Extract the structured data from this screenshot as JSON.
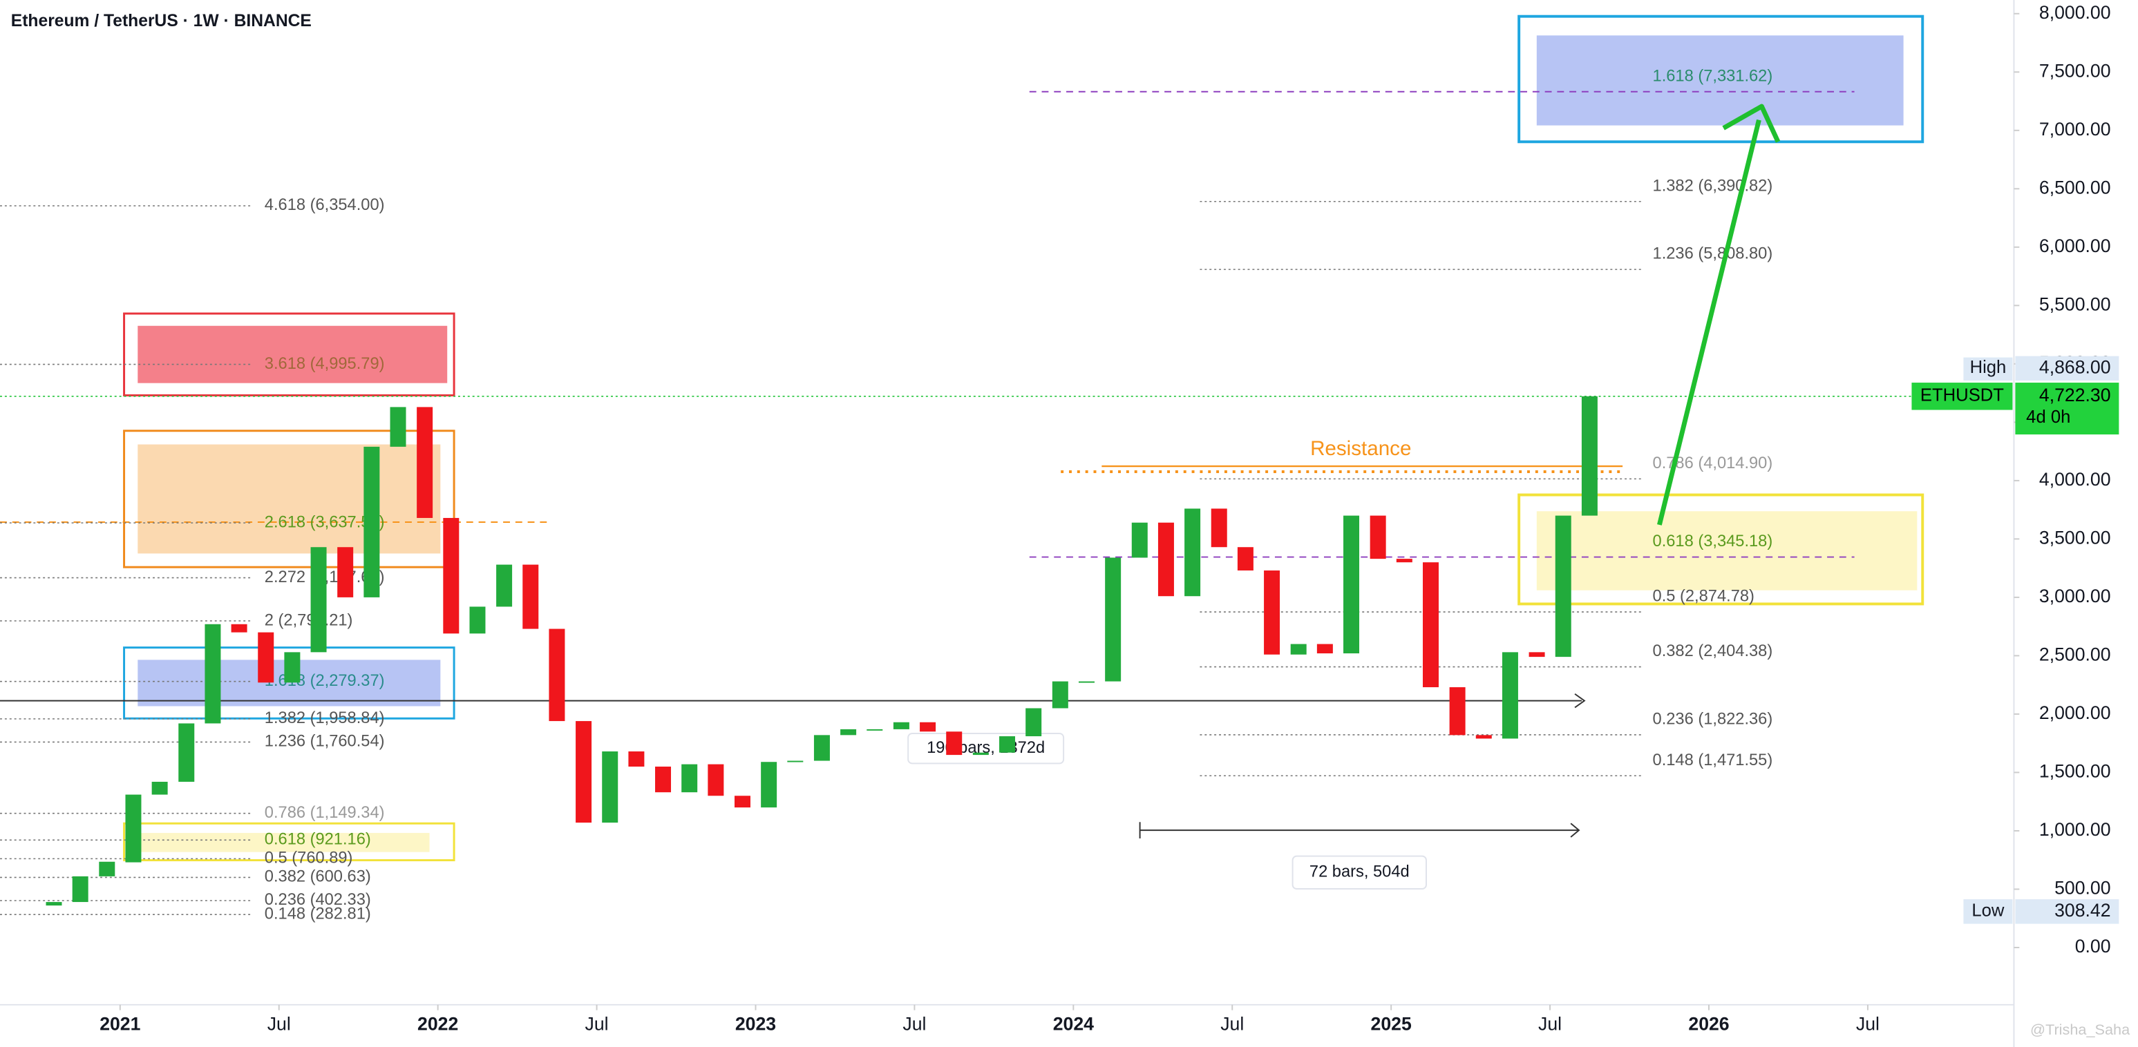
{
  "chart_data": {
    "type": "candlestick",
    "title": "Ethereum / TetherUS · 1W · BINANCE",
    "up_color": "#22ab3c",
    "down_color": "#f0161c",
    "x": [
      2020.75,
      2020.833,
      2020.917,
      2021,
      2021.083,
      2021.167,
      2021.25,
      2021.333,
      2021.417,
      2021.5,
      2021.583,
      2021.667,
      2021.75,
      2021.833,
      2021.917,
      2022,
      2022.083,
      2022.167,
      2022.25,
      2022.333,
      2022.417,
      2022.5,
      2022.583,
      2022.667,
      2022.75,
      2022.833,
      2022.917,
      2023,
      2023.083,
      2023.167,
      2023.25,
      2023.333,
      2023.417,
      2023.5,
      2023.583,
      2023.667,
      2023.75,
      2023.833,
      2023.917,
      2024,
      2024.083,
      2024.167,
      2024.25,
      2024.333,
      2024.417,
      2024.5,
      2024.583,
      2024.667,
      2024.75,
      2024.833,
      2024.917,
      2025,
      2025.083,
      2025.167,
      2025.25,
      2025.333,
      2025.417,
      2025.5,
      2025.583
    ],
    "open": [
      360,
      390,
      610,
      730,
      1310,
      1420,
      1920,
      2770,
      2700,
      2270,
      2530,
      3430,
      3000,
      4290,
      4630,
      3680,
      2690,
      2920,
      3280,
      2730,
      1940,
      1070,
      1680,
      1550,
      1330,
      1570,
      1300,
      1200,
      1590,
      1600,
      1820,
      1870,
      1870,
      1930,
      1850,
      1650,
      1670,
      1810,
      2050,
      2280,
      2280,
      3340,
      3640,
      3010,
      3760,
      3430,
      3230,
      2510,
      2600,
      2520,
      3700,
      3330,
      3300,
      2230,
      1820,
      1790,
      2530,
      2490,
      3700
    ],
    "high": {
      "value": 4868,
      "label": "4,868.00"
    },
    "low": {
      "value": 308.42,
      "label": "308.42"
    },
    "close": [
      390,
      610,
      735,
      1310,
      1420,
      1920,
      2770,
      2700,
      2270,
      2530,
      3430,
      3000,
      4290,
      4630,
      3680,
      2690,
      2920,
      3280,
      2730,
      1940,
      1070,
      1680,
      1550,
      1330,
      1570,
      1300,
      1200,
      1590,
      1600,
      1820,
      1870,
      1870,
      1930,
      1850,
      1650,
      1670,
      1810,
      2050,
      2280,
      2280,
      3340,
      3640,
      3010,
      3760,
      3430,
      3230,
      2510,
      2600,
      2520,
      3700,
      3330,
      3300,
      2230,
      1820,
      1790,
      2530,
      2490,
      3700,
      4722.3
    ],
    "xlim": [
      2020.622,
      2026.96
    ],
    "xticks": [
      {
        "value": 2021,
        "label": "2021"
      },
      {
        "value": 2021.5,
        "label": "Jul"
      },
      {
        "value": 2022,
        "label": "2022"
      },
      {
        "value": 2022.5,
        "label": "Jul"
      },
      {
        "value": 2023,
        "label": "2023"
      },
      {
        "value": 2023.5,
        "label": "Jul"
      },
      {
        "value": 2024,
        "label": "2024"
      },
      {
        "value": 2024.5,
        "label": "Jul"
      },
      {
        "value": 2025,
        "label": "2025"
      },
      {
        "value": 2025.5,
        "label": "Jul"
      },
      {
        "value": 2026,
        "label": "2026"
      },
      {
        "value": 2026.5,
        "label": "Jul"
      }
    ],
    "ylim": [
      -490,
      8117
    ],
    "yticks": [
      {
        "value": 0,
        "label": "0.00"
      },
      {
        "value": 500,
        "label": "500.00"
      },
      {
        "value": 1000,
        "label": "1,000.00"
      },
      {
        "value": 1500,
        "label": "1,500.00"
      },
      {
        "value": 2000,
        "label": "2,000.00"
      },
      {
        "value": 2500,
        "label": "2,500.00"
      },
      {
        "value": 3000,
        "label": "3,000.00"
      },
      {
        "value": 3500,
        "label": "3,500.00"
      },
      {
        "value": 4000,
        "label": "4,000.00"
      },
      {
        "value": 4500,
        "label": "4,500.00"
      },
      {
        "value": 5000,
        "label": "5,000.00"
      },
      {
        "value": 5500,
        "label": "5,500.00"
      },
      {
        "value": 6000,
        "label": "6,000.00"
      },
      {
        "value": 6500,
        "label": "6,500.00"
      },
      {
        "value": 7000,
        "label": "7,000.00"
      },
      {
        "value": 7500,
        "label": "7,500.00"
      },
      {
        "value": 8000,
        "label": "8,000.00"
      }
    ],
    "fib_left": [
      {
        "label": "4.618 (6,354.00)",
        "value": 6354.0,
        "color": "#555555"
      },
      {
        "label": "3.618 (4,995.79)",
        "value": 4995.79,
        "color": "#a0683a"
      },
      {
        "label": "2.618 (3,637.58)",
        "value": 3637.58,
        "color": "#5a9a1e"
      },
      {
        "label": "2.272 (3,167.64)",
        "value": 3167.64,
        "color": "#555555"
      },
      {
        "label": "2 (2,798.21)",
        "value": 2798.21,
        "color": "#555555"
      },
      {
        "label": "1.618 (2,279.37)",
        "value": 2279.37,
        "color": "#2a8c8c"
      },
      {
        "label": "1.382 (1,958.84)",
        "value": 1958.84,
        "color": "#555555"
      },
      {
        "label": "1.236 (1,760.54)",
        "value": 1760.54,
        "color": "#555555"
      },
      {
        "label": "0.786 (1,149.34)",
        "value": 1149.34,
        "color": "#999999"
      },
      {
        "label": "0.618 (921.16)",
        "value": 921.16,
        "color": "#5a9a1e"
      },
      {
        "label": "0.5 (760.89)",
        "value": 760.89,
        "color": "#555555"
      },
      {
        "label": "0.382 (600.63)",
        "value": 600.63,
        "color": "#555555"
      },
      {
        "label": "0.236 (402.33)",
        "value": 402.33,
        "color": "#555555"
      },
      {
        "label": "0.148 (282.81)",
        "value": 282.81,
        "color": "#555555"
      }
    ],
    "fib_right": [
      {
        "label": "1.618 (7,331.62)",
        "value": 7331.62,
        "color": "#2a8c6c",
        "highlight": true
      },
      {
        "label": "1.382 (6,390.82)",
        "value": 6390.82,
        "color": "#555555",
        "highlight": false
      },
      {
        "label": "1.236 (5,808.80)",
        "value": 5808.8,
        "color": "#555555",
        "highlight": false
      },
      {
        "label": "0.786 (4,014.90)",
        "value": 4014.9,
        "color": "#999999",
        "highlight": false
      },
      {
        "label": "0.618 (3,345.18)",
        "value": 3345.18,
        "color": "#5a9a1e",
        "highlight": true
      },
      {
        "label": "0.5 (2,874.78)",
        "value": 2874.78,
        "color": "#555555",
        "highlight": false
      },
      {
        "label": "0.382 (2,404.38)",
        "value": 2404.38,
        "color": "#555555",
        "highlight": false
      },
      {
        "label": "0.236 (1,822.36)",
        "value": 1822.36,
        "color": "#555555",
        "highlight": false
      },
      {
        "label": "0.148 (1,471.55)",
        "value": 1471.55,
        "color": "#555555",
        "highlight": false
      }
    ],
    "resistance": "Resistance",
    "range_1": "196 bars, 1372d",
    "range_2": "72 bars, 504d",
    "high_label": "High",
    "symbol": "ETHUSDT",
    "last": {
      "value": 4722.3,
      "label": "4,722.30"
    },
    "countdown": "4d 0h",
    "low_label": "Low",
    "watermark": "@Trisha_Saha"
  }
}
